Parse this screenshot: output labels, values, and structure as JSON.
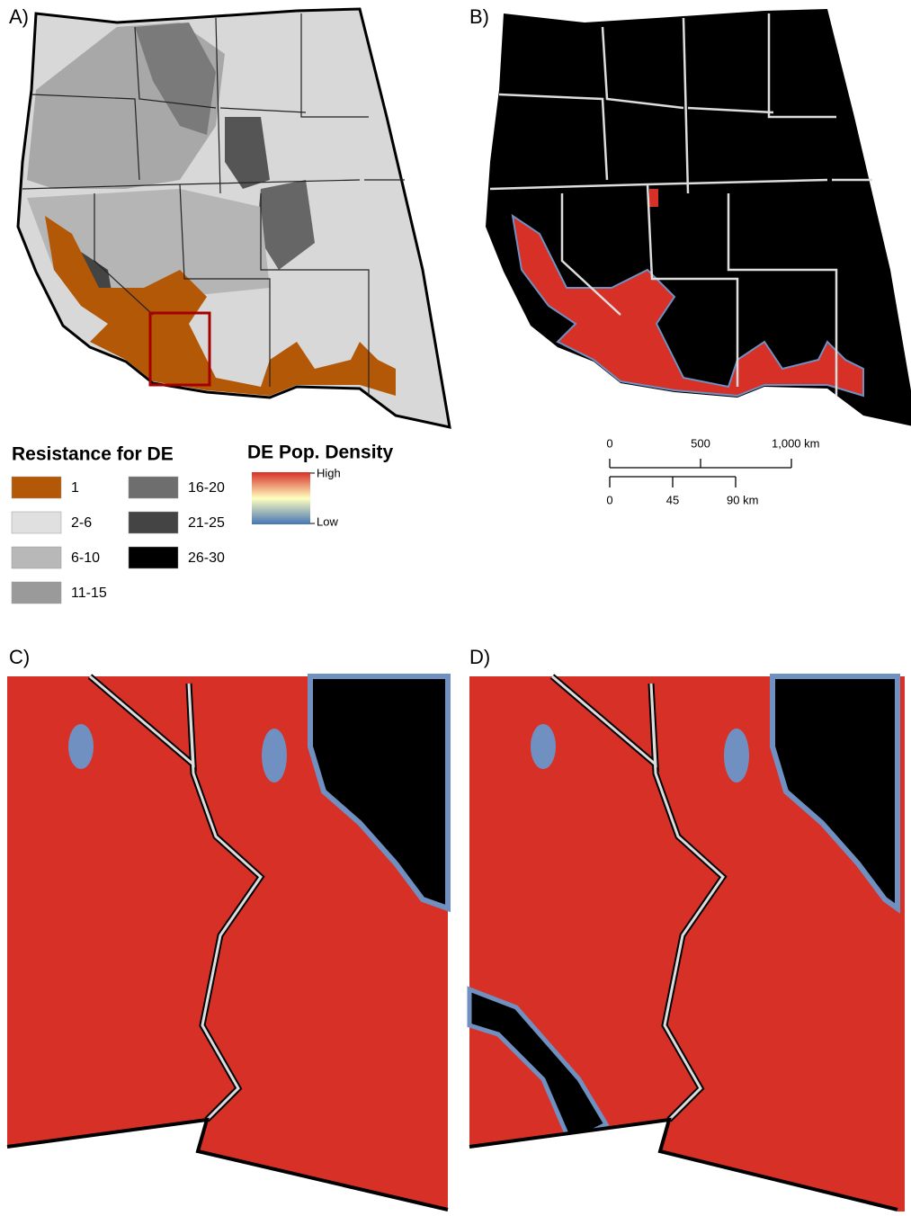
{
  "panels": [
    {
      "label": "A)"
    },
    {
      "label": "B)"
    },
    {
      "label": "C)"
    },
    {
      "label": "D)"
    }
  ],
  "resistance_legend": {
    "title": "Resistance for DE",
    "items": [
      {
        "label": "1",
        "color": "#b35806"
      },
      {
        "label": "2-6",
        "color": "#e0e0e0"
      },
      {
        "label": "6-10",
        "color": "#b8b8b8"
      },
      {
        "label": "11-15",
        "color": "#9a9a9a"
      },
      {
        "label": "16-20",
        "color": "#6e6e6e"
      },
      {
        "label": "21-25",
        "color": "#444444"
      },
      {
        "label": "26-30",
        "color": "#000000"
      }
    ]
  },
  "density_legend": {
    "title": "DE Pop. Density",
    "high": "High",
    "low": "Low"
  },
  "scale_bars": [
    {
      "ticks": [
        "0",
        "500",
        "1,000 km"
      ]
    },
    {
      "ticks": [
        "0",
        "45",
        "90 km"
      ]
    }
  ]
}
